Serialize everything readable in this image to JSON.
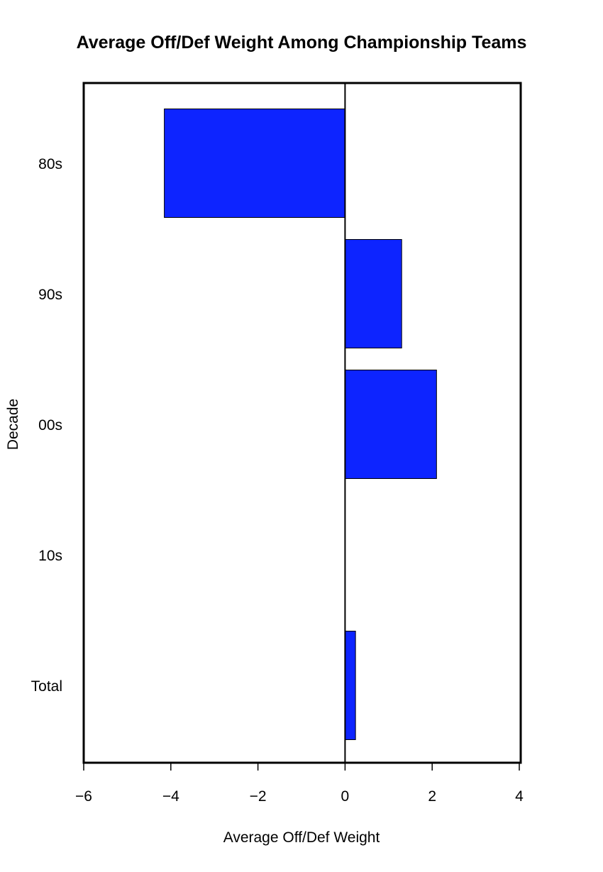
{
  "chart_data": {
    "type": "barh",
    "title": "Average Off/Def Weight Among Championship Teams",
    "xlabel": "Average Off/Def Weight",
    "ylabel": "Decade",
    "categories": [
      "80s",
      "90s",
      "00s",
      "10s",
      "Total"
    ],
    "values": [
      -4.15,
      1.3,
      2.1,
      0,
      0.24
    ],
    "color": "#0d24ff",
    "xlim": [
      -6,
      4
    ],
    "xticks": [
      {
        "value": -6,
        "label": "−6"
      },
      {
        "value": -4,
        "label": "−4"
      },
      {
        "value": -2,
        "label": "−2"
      },
      0,
      2,
      4
    ]
  }
}
